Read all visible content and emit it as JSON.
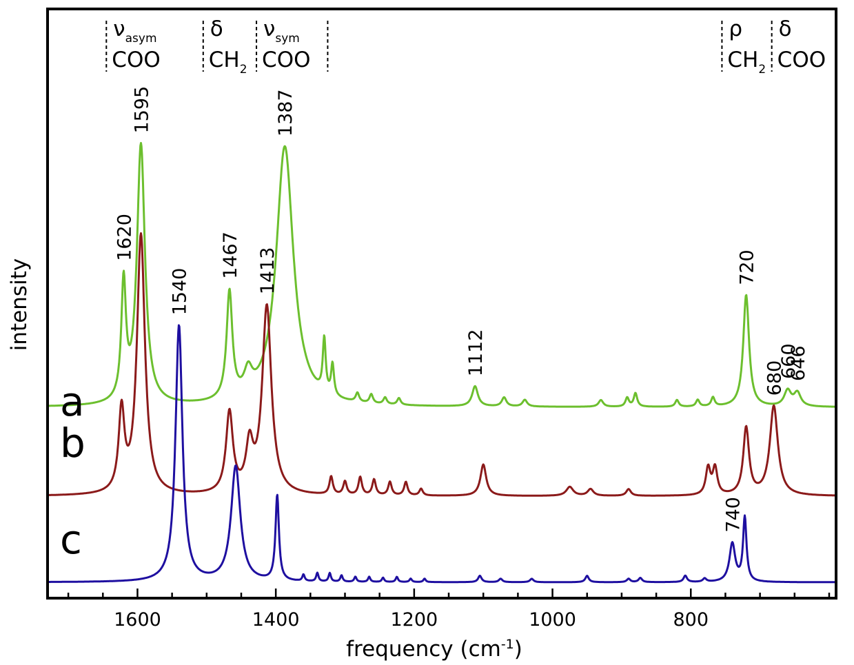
{
  "chart_data": {
    "type": "line",
    "xlabel": "frequency",
    "xlabel_unit": "cm",
    "xlabel_unit_exp": "-1",
    "ylabel": "intensity",
    "xlim": [
      1730,
      590
    ],
    "x_reversed": true,
    "y_ticks_shown": false,
    "grid": false,
    "x_ticks": [
      {
        "value": 1600,
        "label": "1600"
      },
      {
        "value": 1400,
        "label": "1400"
      },
      {
        "value": 1200,
        "label": "1200"
      },
      {
        "value": 1000,
        "label": "1000"
      },
      {
        "value": 800,
        "label": "800"
      }
    ],
    "x_minor_step": 50,
    "mode_regions": [
      {
        "symbol": "ν",
        "sub": "asym",
        "group": "COO",
        "group_sub": "",
        "from": 1645,
        "to": 1505
      },
      {
        "symbol": "δ",
        "sub": "",
        "group": "CH",
        "group_sub": "2",
        "from": 1505,
        "to": 1428
      },
      {
        "symbol": "ν",
        "sub": "sym",
        "group": "COO",
        "group_sub": "",
        "from": 1428,
        "to": 1325
      },
      {
        "symbol": "ρ",
        "sub": "",
        "group": "CH",
        "group_sub": "2",
        "from": 755,
        "to": 683
      },
      {
        "symbol": "δ",
        "sub": "",
        "group": "COO",
        "group_sub": "",
        "from": 683,
        "to": 590
      }
    ],
    "series": [
      {
        "name": "a",
        "color": "#6cbf2e",
        "baseline": 0.02,
        "noise": [
          {
            "x": 1330,
            "h": 0.12,
            "w": 2.5
          },
          {
            "x": 1318,
            "h": 0.07,
            "w": 2.5
          },
          {
            "x": 1282,
            "h": 0.02,
            "w": 3
          },
          {
            "x": 1262,
            "h": 0.02,
            "w": 3
          },
          {
            "x": 1242,
            "h": 0.015,
            "w": 3
          },
          {
            "x": 1222,
            "h": 0.015,
            "w": 3
          },
          {
            "x": 1070,
            "h": 0.02,
            "w": 4
          },
          {
            "x": 1040,
            "h": 0.015,
            "w": 4
          },
          {
            "x": 930,
            "h": 0.015,
            "w": 4
          },
          {
            "x": 892,
            "h": 0.02,
            "w": 3
          },
          {
            "x": 880,
            "h": 0.03,
            "w": 3
          },
          {
            "x": 820,
            "h": 0.015,
            "w": 3
          },
          {
            "x": 790,
            "h": 0.015,
            "w": 3
          },
          {
            "x": 768,
            "h": 0.02,
            "w": 3
          }
        ],
        "peaks": [
          {
            "x": 1620,
            "label": "1620",
            "h": 0.26,
            "w": 4
          },
          {
            "x": 1595,
            "label": "1595",
            "h": 0.58,
            "w": 7
          },
          {
            "x": 1467,
            "label": "1467",
            "h": 0.24,
            "w": 5
          },
          {
            "x": 1440,
            "label": "",
            "h": 0.05,
            "w": 7
          },
          {
            "x": 1387,
            "label": "1387",
            "h": 0.58,
            "w": 15
          },
          {
            "x": 1112,
            "label": "1112",
            "h": 0.045,
            "w": 5
          },
          {
            "x": 720,
            "label": "720",
            "h": 0.25,
            "w": 5
          },
          {
            "x": 660,
            "label": "660",
            "h": 0.035,
            "w": 6
          },
          {
            "x": 646,
            "label": "646",
            "h": 0.03,
            "w": 6
          }
        ],
        "offset_y": 0
      },
      {
        "name": "b",
        "color": "#8b1a1a",
        "baseline": 0.02,
        "noise": [
          {
            "x": 1320,
            "h": 0.04,
            "w": 3
          },
          {
            "x": 1300,
            "h": 0.03,
            "w": 3
          },
          {
            "x": 1278,
            "h": 0.04,
            "w": 3
          },
          {
            "x": 1258,
            "h": 0.035,
            "w": 3
          },
          {
            "x": 1235,
            "h": 0.03,
            "w": 3
          },
          {
            "x": 1212,
            "h": 0.03,
            "w": 3
          },
          {
            "x": 1190,
            "h": 0.015,
            "w": 3
          },
          {
            "x": 975,
            "h": 0.02,
            "w": 6
          },
          {
            "x": 945,
            "h": 0.015,
            "w": 5
          },
          {
            "x": 890,
            "h": 0.015,
            "w": 4
          },
          {
            "x": 775,
            "h": 0.06,
            "w": 4
          },
          {
            "x": 765,
            "h": 0.06,
            "w": 4
          }
        ],
        "peaks": [
          {
            "x": 1623,
            "label": "",
            "h": 0.18,
            "w": 5
          },
          {
            "x": 1595,
            "label": "",
            "h": 0.58,
            "w": 7
          },
          {
            "x": 1467,
            "label": "",
            "h": 0.18,
            "w": 6
          },
          {
            "x": 1438,
            "label": "",
            "h": 0.1,
            "w": 6
          },
          {
            "x": 1413,
            "label": "1413",
            "h": 0.42,
            "w": 8
          },
          {
            "x": 1100,
            "label": "",
            "h": 0.07,
            "w": 5
          },
          {
            "x": 720,
            "label": "",
            "h": 0.15,
            "w": 5
          },
          {
            "x": 680,
            "label": "680",
            "h": 0.2,
            "w": 7
          }
        ],
        "offset_y": 0
      },
      {
        "name": "c",
        "color": "#1e0fa0",
        "baseline": 0.0,
        "noise": [
          {
            "x": 1360,
            "h": 0.015,
            "w": 2
          },
          {
            "x": 1340,
            "h": 0.02,
            "w": 2
          },
          {
            "x": 1322,
            "h": 0.02,
            "w": 2
          },
          {
            "x": 1305,
            "h": 0.015,
            "w": 2
          },
          {
            "x": 1285,
            "h": 0.012,
            "w": 2
          },
          {
            "x": 1265,
            "h": 0.012,
            "w": 2
          },
          {
            "x": 1245,
            "h": 0.01,
            "w": 2
          },
          {
            "x": 1225,
            "h": 0.012,
            "w": 2
          },
          {
            "x": 1205,
            "h": 0.008,
            "w": 2
          },
          {
            "x": 1185,
            "h": 0.008,
            "w": 2
          },
          {
            "x": 1105,
            "h": 0.015,
            "w": 3
          },
          {
            "x": 1075,
            "h": 0.008,
            "w": 3
          },
          {
            "x": 1030,
            "h": 0.008,
            "w": 3
          },
          {
            "x": 950,
            "h": 0.015,
            "w": 3
          },
          {
            "x": 890,
            "h": 0.008,
            "w": 3
          },
          {
            "x": 873,
            "h": 0.01,
            "w": 3
          },
          {
            "x": 808,
            "h": 0.015,
            "w": 3
          },
          {
            "x": 780,
            "h": 0.008,
            "w": 3
          }
        ],
        "peaks": [
          {
            "x": 1540,
            "label": "1540",
            "h": 0.6,
            "w": 6
          },
          {
            "x": 1458,
            "label": "",
            "h": 0.27,
            "w": 8
          },
          {
            "x": 1398,
            "label": "",
            "h": 0.2,
            "w": 3
          },
          {
            "x": 740,
            "label": "740",
            "h": 0.09,
            "w": 5
          },
          {
            "x": 722,
            "label": "",
            "h": 0.15,
            "w": 3
          }
        ],
        "offset_y": 0
      }
    ]
  }
}
